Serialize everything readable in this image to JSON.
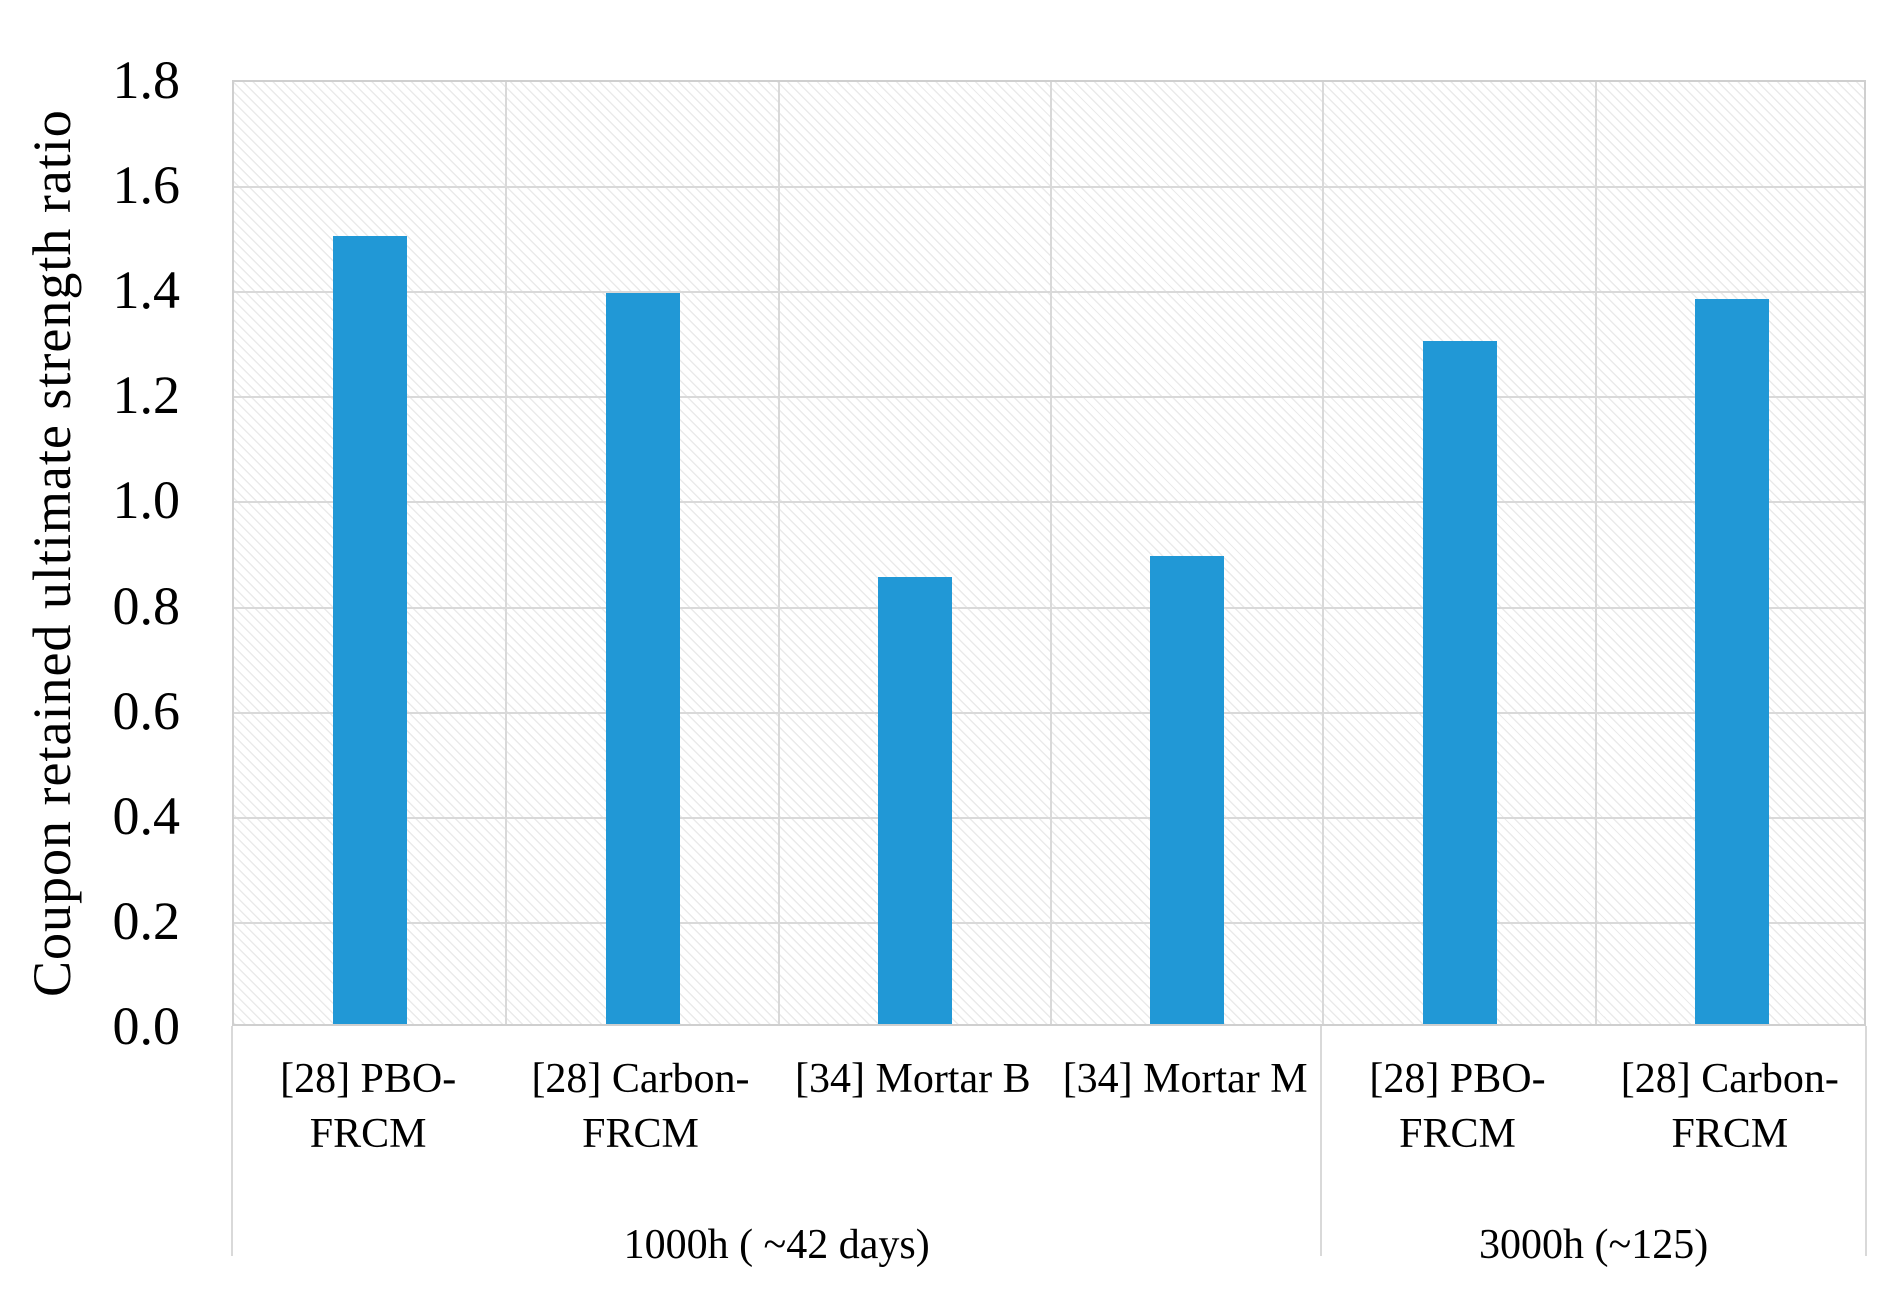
{
  "chart_data": {
    "type": "bar",
    "title": "",
    "xlabel": "",
    "ylabel": "Coupon retained ultimate strength ratio",
    "categories": [
      "[28] PBO-\nFRCM",
      "[28] Carbon-\nFRCM",
      "[34] Mortar B",
      "[34] Mortar M",
      "[28] PBO-\nFRCM",
      "[28] Carbon-\nFRCM"
    ],
    "values": [
      1.5,
      1.39,
      0.85,
      0.89,
      1.3,
      1.38
    ],
    "groups": [
      {
        "label": "1000h ( ~42 days)",
        "span": 4
      },
      {
        "label": "3000h (~125)",
        "span": 2
      }
    ],
    "ylim": [
      0.0,
      1.8
    ],
    "ytick_interval": 0.2,
    "ytick_labels": [
      "0.0",
      "0.2",
      "0.4",
      "0.6",
      "0.8",
      "1.0",
      "1.2",
      "1.4",
      "1.6",
      "1.8"
    ],
    "legend": "none",
    "grid": true,
    "plot_background": "light diagonal hatch",
    "colors": {
      "bar": "#2198d6",
      "gridline": "#d9d9d9",
      "plot_border": "#cfcfcf",
      "text": "#000000"
    }
  }
}
